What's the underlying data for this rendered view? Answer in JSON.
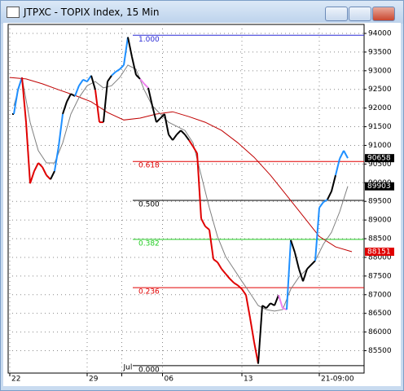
{
  "chart_data": {
    "type": "price-line",
    "title": "JTPXC - TOPIX Index, 15 Min",
    "xlim": [
      -1,
      86
    ],
    "ylim": [
      84900,
      94240
    ],
    "grid": true,
    "xticks": [
      {
        "value": -1,
        "label": "22"
      },
      {
        "value": 18,
        "label": "29"
      },
      {
        "value": 26.5,
        "label": "Jul"
      },
      {
        "value": 36.5,
        "label": "06"
      },
      {
        "value": 56,
        "label": "13"
      },
      {
        "value": 75,
        "label": "21-09:00"
      }
    ],
    "yticks": [
      94000,
      93500,
      93000,
      92500,
      92000,
      91500,
      91000,
      90500,
      90000,
      89500,
      89000,
      88500,
      88000,
      87500,
      87000,
      86500,
      86000,
      85500
    ],
    "price": {
      "x": [
        0,
        1,
        2,
        3,
        4,
        5,
        6,
        7,
        8,
        9,
        10,
        11,
        12,
        13,
        14,
        15,
        16,
        17,
        18,
        19,
        20,
        21,
        22,
        23,
        24,
        25,
        26,
        27,
        28,
        29,
        30,
        31,
        32,
        33,
        34,
        35,
        36,
        37,
        38,
        39,
        40,
        41,
        42,
        43,
        44,
        45,
        46,
        47,
        48,
        49,
        50,
        51,
        52,
        53,
        54,
        55,
        56,
        57,
        58,
        59,
        60,
        61,
        62,
        63,
        64,
        65,
        66,
        67,
        68,
        69,
        70,
        71,
        72,
        73,
        74,
        75,
        76,
        77,
        78,
        79,
        80,
        81,
        82
      ],
      "values": [
        91840,
        92490,
        92820,
        91620,
        89980,
        90310,
        90530,
        90420,
        90200,
        90090,
        90310,
        90970,
        91840,
        92170,
        92380,
        92320,
        92600,
        92760,
        92710,
        92870,
        92490,
        91620,
        91620,
        92710,
        92870,
        92970,
        93040,
        93150,
        93900,
        93370,
        92890,
        92780,
        92650,
        92540,
        92060,
        91620,
        91730,
        91840,
        91290,
        91140,
        91290,
        91400,
        91290,
        91140,
        90970,
        90790,
        89040,
        88830,
        88740,
        87950,
        87870,
        87690,
        87560,
        87430,
        87320,
        87250,
        87150,
        86990,
        86380,
        85730,
        85150,
        86710,
        86640,
        86770,
        86710,
        86990,
        86640,
        86600,
        88460,
        88130,
        87690,
        87360,
        87690,
        87800,
        87910,
        89330,
        89480,
        89550,
        89770,
        90200,
        90640,
        90860,
        90658
      ],
      "colors": [
        "#000000",
        "#1e8fff",
        "#1e8fff",
        "#e00000",
        "#e00000",
        "#e00000",
        "#e00000",
        "#e00000",
        "#e00000",
        "#e00000",
        "#000000",
        "#1e8fff",
        "#1e8fff",
        "#000000",
        "#000000",
        "#000000",
        "#1e8fff",
        "#1e8fff",
        "#1e8fff",
        "#1e8fff",
        "#000000",
        "#e00000",
        "#e00000",
        "#000000",
        "#000000",
        "#1e8fff",
        "#1e8fff",
        "#1e8fff",
        "#1e8fff",
        "#000000",
        "#000000",
        "#000000",
        "#ee82ee",
        "#ee82ee",
        "#000000",
        "#000000",
        "#000000",
        "#000000",
        "#000000",
        "#000000",
        "#000000",
        "#000000",
        "#000000",
        "#000000",
        "#e00000",
        "#e00000",
        "#e00000",
        "#e00000",
        "#e00000",
        "#e00000",
        "#e00000",
        "#e00000",
        "#e00000",
        "#e00000",
        "#e00000",
        "#e00000",
        "#e00000",
        "#e00000",
        "#e00000",
        "#e00000",
        "#e00000",
        "#000000",
        "#000000",
        "#000000",
        "#000000",
        "#000000",
        "#ee82ee",
        "#ee82ee",
        "#1e8fff",
        "#000000",
        "#000000",
        "#000000",
        "#000000",
        "#000000",
        "#000000",
        "#1e8fff",
        "#1e8fff",
        "#1e8fff",
        "#000000",
        "#000000",
        "#1e8fff",
        "#1e8fff",
        "#1e8fff"
      ],
      "last_label_color": "#000000"
    },
    "ma_fast": {
      "color": "#808080",
      "x": [
        0,
        2,
        4,
        6,
        8,
        10,
        12,
        14,
        16,
        18,
        20,
        22,
        24,
        26,
        28,
        30,
        32,
        34,
        36,
        38,
        40,
        42,
        44,
        46,
        48,
        50,
        52,
        54,
        56,
        58,
        60,
        62,
        64,
        66,
        68,
        70,
        72,
        74,
        76,
        78,
        80,
        82
      ],
      "values": [
        92060,
        92820,
        91620,
        90860,
        90530,
        90530,
        91070,
        91840,
        92280,
        92600,
        92710,
        92540,
        92600,
        92820,
        93150,
        93040,
        92490,
        92060,
        91840,
        91620,
        91510,
        91400,
        91070,
        90200,
        89330,
        88560,
        88020,
        87690,
        87360,
        87040,
        86710,
        86600,
        86560,
        86600,
        87150,
        87470,
        87690,
        87910,
        88350,
        88670,
        89220,
        89903
      ],
      "last_label_color": "#000000"
    },
    "ma_slow": {
      "color": "#c00000",
      "x": [
        -1,
        3,
        7,
        11,
        15,
        19,
        23,
        27,
        31,
        35,
        39,
        43,
        47,
        51,
        55,
        59,
        63,
        67,
        71,
        75,
        79,
        83
      ],
      "values": [
        92820,
        92780,
        92650,
        92490,
        92340,
        92170,
        91880,
        91680,
        91730,
        91840,
        91900,
        91770,
        91620,
        91400,
        91070,
        90680,
        90200,
        89660,
        89110,
        88560,
        88280,
        88151
      ],
      "last_label_color": "#e00000"
    },
    "fib_levels": [
      {
        "label": "1.000",
        "value": 93950,
        "color": "#2b2bd6"
      },
      {
        "label": "0.618",
        "value": 90569,
        "color": "#e00000"
      },
      {
        "label": "0.500",
        "value": 89525,
        "color": "#000000"
      },
      {
        "label": "0.382",
        "value": 88481,
        "color": "#22cc22"
      },
      {
        "label": "0.236",
        "value": 87189,
        "color": "#e00000"
      },
      {
        "label": "0.000",
        "value": 85100,
        "color": "#000000"
      }
    ]
  }
}
